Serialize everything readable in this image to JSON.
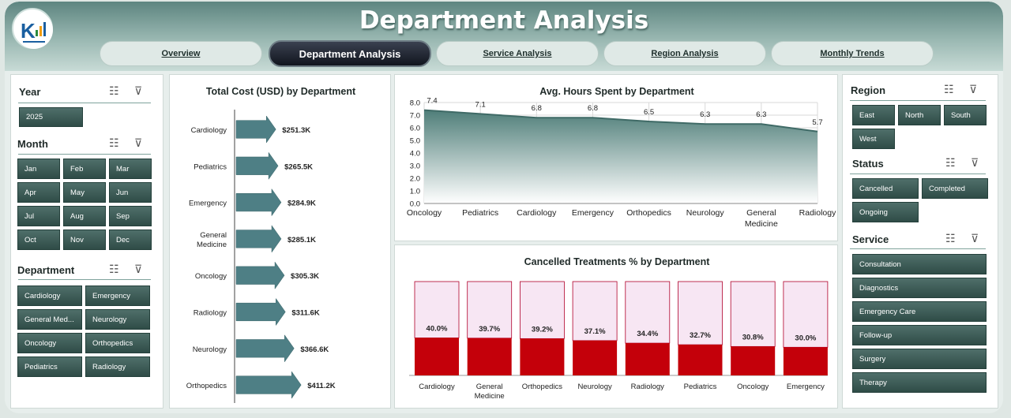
{
  "header": {
    "title": "Department Analysis"
  },
  "tabs": [
    {
      "label": "Overview",
      "active": false
    },
    {
      "label": "Department Analysis",
      "active": true
    },
    {
      "label": "Service Analysis",
      "active": false
    },
    {
      "label": "Region  Analysis",
      "active": false
    },
    {
      "label": "Monthly Trends",
      "active": false
    }
  ],
  "slicers_left": {
    "year": {
      "title": "Year",
      "items": [
        "2025"
      ]
    },
    "month": {
      "title": "Month",
      "items": [
        "Jan",
        "Feb",
        "Mar",
        "Apr",
        "May",
        "Jun",
        "Jul",
        "Aug",
        "Sep",
        "Oct",
        "Nov",
        "Dec"
      ]
    },
    "department": {
      "title": "Department",
      "items": [
        "Cardiology",
        "Emergency",
        "General Med...",
        "Neurology",
        "Oncology",
        "Orthopedics",
        "Pediatrics",
        "Radiology"
      ]
    }
  },
  "slicers_right": {
    "region": {
      "title": "Region",
      "items": [
        "East",
        "North",
        "South",
        "West"
      ]
    },
    "status": {
      "title": "Status",
      "items": [
        "Cancelled",
        "Completed",
        "Ongoing"
      ]
    },
    "service": {
      "title": "Service",
      "items": [
        "Consultation",
        "Diagnostics",
        "Emergency Care",
        "Follow-up",
        "Surgery",
        "Therapy"
      ]
    }
  },
  "chart_data": [
    {
      "type": "bar",
      "title": "Total Cost (USD) by Department",
      "orientation": "horizontal",
      "categories": [
        "Cardiology",
        "Pediatrics",
        "Emergency",
        "General Medicine",
        "Oncology",
        "Radiology",
        "Neurology",
        "Orthopedics"
      ],
      "values": [
        251.3,
        265.5,
        284.9,
        285.1,
        305.3,
        311.6,
        366.6,
        411.2
      ],
      "labels": [
        "$251.3K",
        "$265.5K",
        "$284.9K",
        "$285.1K",
        "$305.3K",
        "$311.6K",
        "$366.6K",
        "$411.2K"
      ],
      "color": "#4e7f85"
    },
    {
      "type": "area",
      "title": "Avg. Hours Spent by Department",
      "categories": [
        "Oncology",
        "Pediatrics",
        "Cardiology",
        "Emergency",
        "Orthopedics",
        "Neurology",
        "General Medicine",
        "Radiology"
      ],
      "values": [
        7.4,
        7.1,
        6.8,
        6.8,
        6.5,
        6.3,
        6.3,
        5.7
      ],
      "ylim": [
        0,
        8.0
      ],
      "yticks": [
        "0.0",
        "1.0",
        "2.0",
        "3.0",
        "4.0",
        "5.0",
        "6.0",
        "7.0",
        "8.0"
      ],
      "grid": true,
      "color": "#5b8b86"
    },
    {
      "type": "bar",
      "title": "Cancelled Treatments % by Department",
      "stacked": true,
      "categories": [
        "Cardiology",
        "General Medicine",
        "Orthopedics",
        "Neurology",
        "Radiology",
        "Pediatrics",
        "Oncology",
        "Emergency"
      ],
      "values": [
        40.0,
        39.7,
        39.2,
        37.1,
        34.4,
        32.7,
        30.8,
        30.0
      ],
      "labels": [
        "40.0%",
        "39.7%",
        "39.2%",
        "37.1%",
        "34.4%",
        "32.7%",
        "30.8%",
        "30.0%"
      ],
      "total": 100,
      "colors": [
        "#c4000a",
        "#f7e6f3"
      ]
    }
  ]
}
